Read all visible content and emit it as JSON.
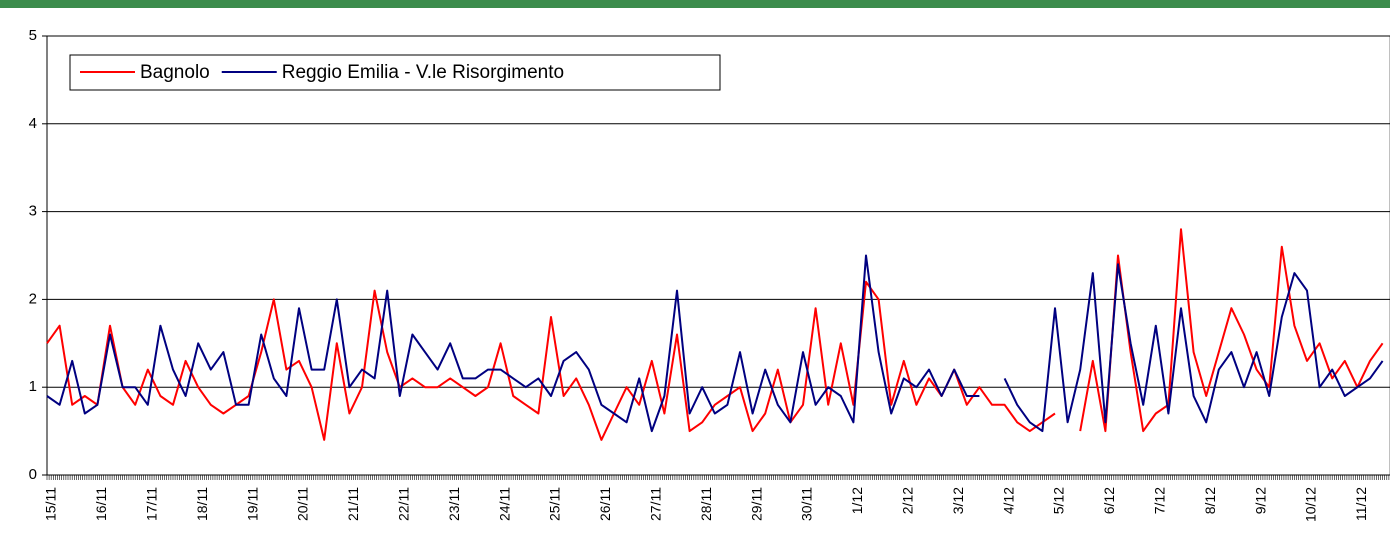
{
  "chart_data": {
    "type": "line",
    "categories": [
      "15/11",
      null,
      null,
      null,
      "16/11",
      null,
      null,
      null,
      "17/11",
      null,
      null,
      null,
      "18/11",
      null,
      null,
      null,
      "19/11",
      null,
      null,
      null,
      "20/11",
      null,
      null,
      null,
      "21/11",
      null,
      null,
      null,
      "22/11",
      null,
      null,
      null,
      "23/11",
      null,
      null,
      null,
      "24/11",
      null,
      null,
      null,
      "25/11",
      null,
      null,
      null,
      "26/11",
      null,
      null,
      null,
      "27/11",
      null,
      null,
      null,
      "28/11",
      null,
      null,
      null,
      "29/11",
      null,
      null,
      null,
      "30/11",
      null,
      null,
      null,
      "1/12",
      null,
      null,
      null,
      "2/12",
      null,
      null,
      null,
      "3/12",
      null,
      null,
      null,
      "4/12",
      null,
      null,
      null,
      "5/12",
      null,
      null,
      null,
      "6/12",
      null,
      null,
      null,
      "7/12",
      null,
      null,
      null,
      "8/12",
      null,
      null,
      null,
      "9/12",
      null,
      null,
      null,
      "10/12",
      null,
      null,
      null,
      "11/12",
      null,
      null
    ],
    "series": [
      {
        "name": "Bagnolo",
        "color": "#ff0000",
        "values": [
          1.5,
          1.7,
          0.8,
          0.9,
          0.8,
          1.7,
          1.0,
          0.8,
          1.2,
          0.9,
          0.8,
          1.3,
          1.0,
          0.8,
          0.7,
          0.8,
          0.9,
          1.4,
          2.0,
          1.2,
          1.3,
          1.0,
          0.4,
          1.5,
          0.7,
          1.0,
          2.1,
          1.4,
          1.0,
          1.1,
          1.0,
          1.0,
          1.1,
          1.0,
          0.9,
          1.0,
          1.5,
          0.9,
          0.8,
          0.7,
          1.8,
          0.9,
          1.1,
          0.8,
          0.4,
          0.7,
          1.0,
          0.8,
          1.3,
          0.7,
          1.6,
          0.5,
          0.6,
          0.8,
          0.9,
          1.0,
          0.5,
          0.7,
          1.2,
          0.6,
          0.8,
          1.9,
          0.8,
          1.5,
          0.8,
          2.2,
          2.0,
          0.8,
          1.3,
          0.8,
          1.1,
          0.9,
          1.2,
          0.8,
          1.0,
          0.8,
          0.8,
          0.6,
          0.5,
          0.6,
          0.7,
          null,
          0.5,
          1.3,
          0.5,
          2.5,
          1.4,
          0.5,
          0.7,
          0.8,
          2.8,
          1.4,
          0.9,
          1.4,
          1.9,
          1.6,
          1.2,
          1.0,
          2.6,
          1.7,
          1.3,
          1.5,
          1.1,
          1.3,
          1.0,
          1.3,
          1.5
        ]
      },
      {
        "name": "Reggio Emilia - V.le Risorgimento",
        "color": "#000080",
        "values": [
          0.9,
          0.8,
          1.3,
          0.7,
          0.8,
          1.6,
          1.0,
          1.0,
          0.8,
          1.7,
          1.2,
          0.9,
          1.5,
          1.2,
          1.4,
          0.8,
          0.8,
          1.6,
          1.1,
          0.9,
          1.9,
          1.2,
          1.2,
          2.0,
          1.0,
          1.2,
          1.1,
          2.1,
          0.9,
          1.6,
          1.4,
          1.2,
          1.5,
          1.1,
          1.1,
          1.2,
          1.2,
          1.1,
          1.0,
          1.1,
          0.9,
          1.3,
          1.4,
          1.2,
          0.8,
          0.7,
          0.6,
          1.1,
          0.5,
          0.9,
          2.1,
          0.7,
          1.0,
          0.7,
          0.8,
          1.4,
          0.7,
          1.2,
          0.8,
          0.6,
          1.4,
          0.8,
          1.0,
          0.9,
          0.6,
          2.5,
          1.4,
          0.7,
          1.1,
          1.0,
          1.2,
          0.9,
          1.2,
          0.9,
          0.9,
          null,
          1.1,
          0.8,
          0.6,
          0.5,
          1.9,
          0.6,
          1.2,
          2.3,
          0.6,
          2.4,
          1.5,
          0.8,
          1.7,
          0.7,
          1.9,
          0.9,
          0.6,
          1.2,
          1.4,
          1.0,
          1.4,
          0.9,
          1.8,
          2.3,
          2.1,
          1.0,
          1.2,
          0.9,
          1.0,
          1.1,
          1.3
        ]
      }
    ],
    "ylim": [
      0,
      5
    ],
    "yticks": [
      0,
      1,
      2,
      3,
      4,
      5
    ],
    "grid": true,
    "legend": "top-left"
  }
}
